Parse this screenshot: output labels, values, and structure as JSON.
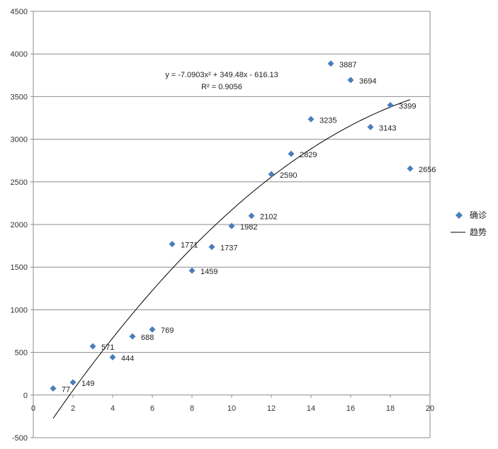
{
  "chart_data": {
    "type": "scatter",
    "title": "",
    "xlabel": "",
    "ylabel": "",
    "xlim": [
      0,
      20
    ],
    "ylim": [
      -500,
      4500
    ],
    "x_ticks": [
      0,
      2,
      4,
      6,
      8,
      10,
      12,
      14,
      16,
      18,
      20
    ],
    "y_ticks": [
      -500,
      0,
      500,
      1000,
      1500,
      2000,
      2500,
      3000,
      3500,
      4000,
      4500
    ],
    "grid": "horizontal",
    "legend_position": "right",
    "series": [
      {
        "name": "确诊",
        "marker": "diamond",
        "color": "#4a7ebb",
        "x": [
          1,
          2,
          3,
          4,
          5,
          6,
          7,
          8,
          9,
          10,
          11,
          12,
          13,
          14,
          15,
          16,
          17,
          18,
          19
        ],
        "values": [
          77,
          149,
          571,
          444,
          688,
          769,
          1771,
          1459,
          1737,
          1982,
          2102,
          2590,
          2829,
          3235,
          3887,
          3694,
          3143,
          3399,
          2656
        ],
        "data_labels": [
          "77",
          "149",
          "571",
          "444",
          "688",
          "769",
          "1771",
          "1459",
          "1737",
          "1982",
          "2102",
          "2590",
          "2829",
          "3235",
          "3887",
          "3694",
          "3143",
          "3399",
          "2656"
        ]
      }
    ],
    "trendline": {
      "name": "趋势",
      "type": "polynomial",
      "coefficients": [
        -7.0903,
        349.48,
        -616.13
      ],
      "x_range": [
        1,
        19
      ],
      "color": "#000000",
      "equation_text": "y = -7.0903x² + 349.48x - 616.13",
      "r2_text": "R² = 0.9056"
    }
  }
}
